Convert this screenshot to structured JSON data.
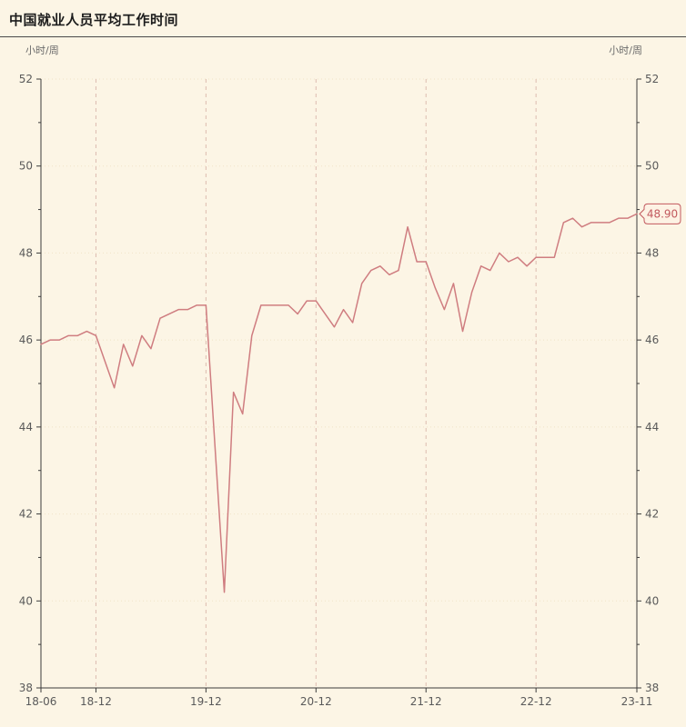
{
  "page": {
    "title": "中国就业人员平均工作时间",
    "y_unit_left": "小时/周",
    "y_unit_right": "小时/周"
  },
  "chart_data": {
    "type": "line",
    "title": "中国就业人员平均工作时间",
    "ylabel": "小时/周",
    "ylim": [
      38,
      52
    ],
    "y_ticks": [
      38,
      40,
      42,
      44,
      46,
      48,
      50,
      52
    ],
    "y_minor_step": 1,
    "x": [
      "2018-06",
      "2018-07",
      "2018-08",
      "2018-09",
      "2018-10",
      "2018-11",
      "2018-12",
      "2019-01",
      "2019-02",
      "2019-03",
      "2019-04",
      "2019-05",
      "2019-06",
      "2019-07",
      "2019-08",
      "2019-09",
      "2019-10",
      "2019-11",
      "2019-12",
      "2020-01",
      "2020-02",
      "2020-03",
      "2020-04",
      "2020-05",
      "2020-06",
      "2020-07",
      "2020-08",
      "2020-09",
      "2020-10",
      "2020-11",
      "2020-12",
      "2021-01",
      "2021-02",
      "2021-03",
      "2021-04",
      "2021-05",
      "2021-06",
      "2021-07",
      "2021-08",
      "2021-09",
      "2021-10",
      "2021-11",
      "2021-12",
      "2022-01",
      "2022-02",
      "2022-03",
      "2022-04",
      "2022-05",
      "2022-06",
      "2022-07",
      "2022-08",
      "2022-09",
      "2022-10",
      "2022-11",
      "2022-12",
      "2023-01",
      "2023-02",
      "2023-03",
      "2023-04",
      "2023-05",
      "2023-06",
      "2023-07",
      "2023-08",
      "2023-09",
      "2023-10",
      "2023-11"
    ],
    "values": [
      45.9,
      46.0,
      46.0,
      46.1,
      46.1,
      46.2,
      46.1,
      45.5,
      44.9,
      45.9,
      45.4,
      46.1,
      45.8,
      46.5,
      46.6,
      46.7,
      46.7,
      46.8,
      46.8,
      43.5,
      40.2,
      44.8,
      44.3,
      46.1,
      46.8,
      46.8,
      46.8,
      46.8,
      46.6,
      46.9,
      46.9,
      46.6,
      46.3,
      46.7,
      46.4,
      47.3,
      47.6,
      47.7,
      47.5,
      47.6,
      48.6,
      47.8,
      47.8,
      47.2,
      46.7,
      47.3,
      46.2,
      47.1,
      47.7,
      47.6,
      48.0,
      47.8,
      47.9,
      47.7,
      47.9,
      47.9,
      47.9,
      48.7,
      48.8,
      48.6,
      48.7,
      48.7,
      48.7,
      48.8,
      48.8,
      48.9
    ],
    "x_tick_labels": [
      "18-06",
      "18-12",
      "19-12",
      "20-12",
      "21-12",
      "22-12",
      "23-11"
    ],
    "x_tick_indices": [
      0,
      6,
      18,
      30,
      42,
      54,
      65
    ],
    "last_value": 48.9,
    "last_label": "48.90",
    "grid": {
      "horizontal": "dotted",
      "vertical": "dashed-at-year-ticks"
    },
    "legend": "none",
    "colors": {
      "background": "#fcf5e5",
      "line": "#cf7d80",
      "axis": "#3c3c3c",
      "tick_text": "#5a5a5a",
      "grid_h": "#f0e3c8",
      "grid_v": "#ddbcb0",
      "badge_border": "#c2595e",
      "badge_text": "#c2595e",
      "badge_bg": "#fdf2e4"
    }
  }
}
